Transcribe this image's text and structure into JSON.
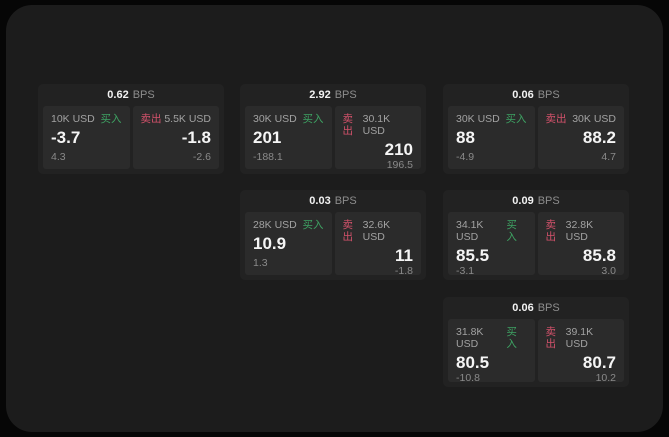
{
  "labels": {
    "buy": "买入",
    "sell": "卖出",
    "bps_unit": "BPS"
  },
  "colors": {
    "buy_accent": "#3ea363",
    "sell_accent": "#d4526b",
    "panel_bg": "#1c1c1c",
    "card_bg": "#222222",
    "quote_bg": "#2b2b2b"
  },
  "cards": [
    {
      "bps": "0.62",
      "buy": {
        "size": "10K USD",
        "value": "-3.7",
        "delta": "4.3"
      },
      "sell": {
        "size": "5.5K USD",
        "value": "-1.8",
        "delta": "-2.6"
      }
    },
    {
      "bps": "2.92",
      "buy": {
        "size": "30K USD",
        "value": "201",
        "delta": "-188.1"
      },
      "sell": {
        "size": "30.1K USD",
        "value": "210",
        "delta": "196.5"
      }
    },
    {
      "bps": "0.06",
      "buy": {
        "size": "30K USD",
        "value": "88",
        "delta": "-4.9"
      },
      "sell": {
        "size": "30K USD",
        "value": "88.2",
        "delta": "4.7"
      }
    },
    {
      "bps": "0.03",
      "buy": {
        "size": "28K USD",
        "value": "10.9",
        "delta": "1.3"
      },
      "sell": {
        "size": "32.6K USD",
        "value": "11",
        "delta": "-1.8"
      }
    },
    {
      "bps": "0.09",
      "buy": {
        "size": "34.1K USD",
        "value": "85.5",
        "delta": "-3.1"
      },
      "sell": {
        "size": "32.8K USD",
        "value": "85.8",
        "delta": "3.0"
      }
    },
    {
      "bps": "0.06",
      "buy": {
        "size": "31.8K USD",
        "value": "80.5",
        "delta": "-10.8"
      },
      "sell": {
        "size": "39.1K USD",
        "value": "80.7",
        "delta": "10.2"
      }
    }
  ]
}
